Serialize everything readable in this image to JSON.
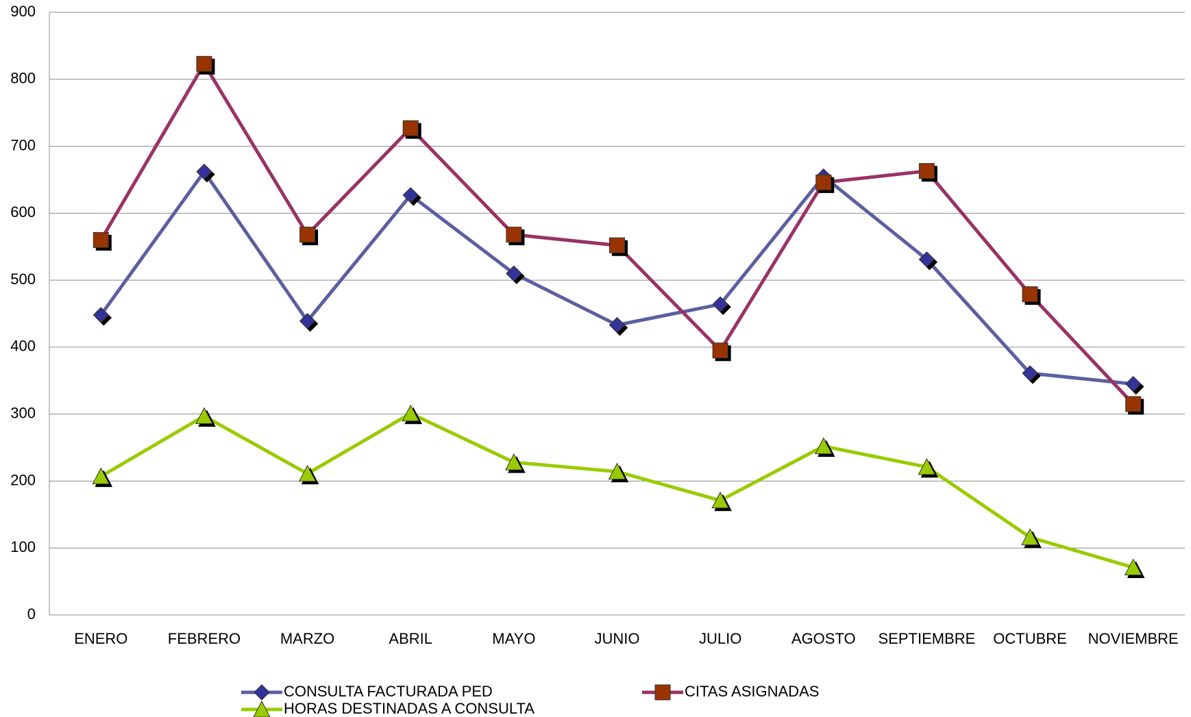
{
  "chart_data": {
    "type": "line",
    "categories": [
      "ENERO",
      "FEBRERO",
      "MARZO",
      "ABRIL",
      "MAYO",
      "JUNIO",
      "JULIO",
      "AGOSTO",
      "SEPTIEMBRE",
      "OCTUBRE",
      "NOVIEMBRE"
    ],
    "series": [
      {
        "name": "CONSULTA FACTURADA PED",
        "color": "#5b5fa0",
        "marker_color": "#333399",
        "marker": "diamond",
        "values": [
          448,
          662,
          439,
          627,
          510,
          433,
          464,
          655,
          531,
          361,
          345
        ]
      },
      {
        "name": "CITAS ASIGNADAS",
        "color": "#993366",
        "marker_color": "#993300",
        "marker": "square",
        "values": [
          560,
          823,
          568,
          727,
          568,
          552,
          395,
          646,
          663,
          479,
          315
        ]
      },
      {
        "name": "HORAS DESTINADAS A CONSULTA",
        "color": "#99cc00",
        "marker_color": "#99cc00",
        "marker": "triangle",
        "values": [
          207,
          297,
          211,
          301,
          228,
          214,
          171,
          252,
          221,
          116,
          71
        ]
      }
    ],
    "ylim": [
      0,
      900
    ],
    "yticks": [
      0,
      100,
      200,
      300,
      400,
      500,
      600,
      700,
      800,
      900
    ],
    "grid": true,
    "legend": "bottom"
  }
}
